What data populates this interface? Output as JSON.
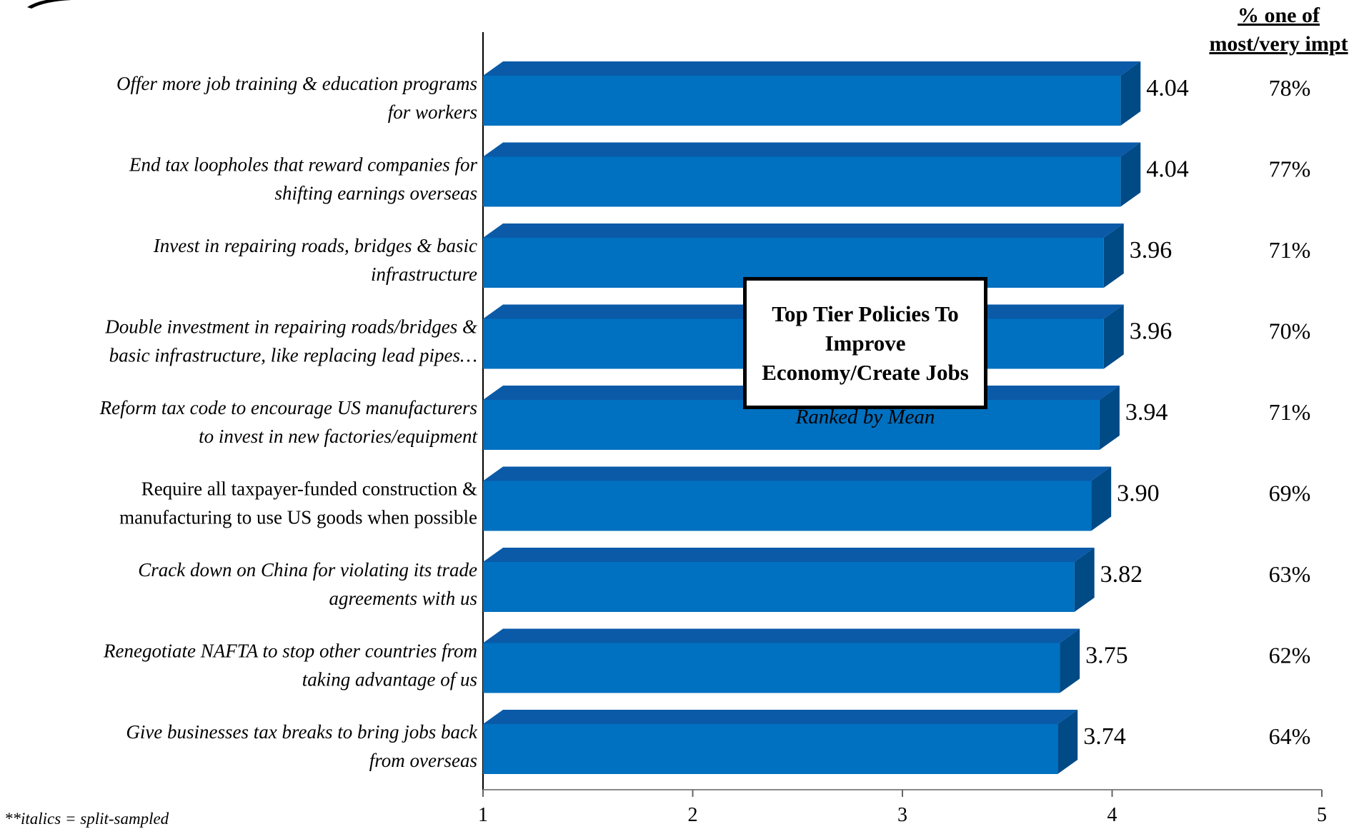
{
  "header": {
    "pct_line1": "% one of",
    "pct_line2": "most/very impt"
  },
  "overlay": {
    "title": "Top Tier Policies To Improve Economy/Create Jobs",
    "subtitle": "Ranked by Mean"
  },
  "footnote": "**italics = split-sampled",
  "colors": {
    "bar_front": "#0070c0",
    "bar_top": "#0a5aa8",
    "bar_side": "#004a86",
    "axis": "#000000"
  },
  "chart_data": {
    "type": "bar",
    "orientation": "horizontal",
    "xlim": [
      1,
      5
    ],
    "xticks": [
      "1",
      "2",
      "3",
      "4",
      "5"
    ],
    "grid": false,
    "categories": [
      {
        "lines": [
          "Offer more job training & education programs",
          "for workers"
        ],
        "italic": true
      },
      {
        "lines": [
          "End tax loopholes that reward companies for",
          "shifting earnings overseas"
        ],
        "italic": true
      },
      {
        "lines": [
          "Invest in repairing roads, bridges & basic",
          "infrastructure"
        ],
        "italic": true
      },
      {
        "lines": [
          "Double investment in repairing roads/bridges &",
          "basic infrastructure, like replacing lead pipes…"
        ],
        "italic": true
      },
      {
        "lines": [
          "Reform tax code to encourage US manufacturers",
          "to invest in new factories/equipment"
        ],
        "italic": true
      },
      {
        "lines": [
          "Require all taxpayer-funded construction &",
          "manufacturing to use US goods when possible"
        ],
        "italic": false
      },
      {
        "lines": [
          "Crack down on China for violating its trade",
          "agreements with us"
        ],
        "italic": true
      },
      {
        "lines": [
          "Renegotiate NAFTA to stop other countries from",
          "taking advantage of us"
        ],
        "italic": true
      },
      {
        "lines": [
          "Give businesses tax breaks to bring jobs back",
          "from overseas"
        ],
        "italic": true
      }
    ],
    "values": [
      4.04,
      4.04,
      3.96,
      3.96,
      3.94,
      3.9,
      3.82,
      3.75,
      3.74
    ],
    "value_labels": [
      "4.04",
      "4.04",
      "3.96",
      "3.96",
      "3.94",
      "3.90",
      "3.82",
      "3.75",
      "3.74"
    ],
    "percent_labels": [
      "78%",
      "77%",
      "71%",
      "70%",
      "71%",
      "69%",
      "63%",
      "62%",
      "64%"
    ]
  }
}
